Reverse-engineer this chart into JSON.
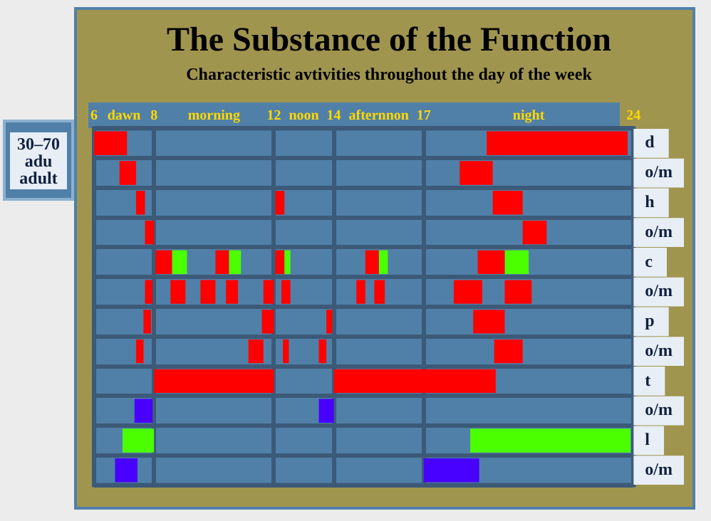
{
  "chart_data": {
    "type": "bar",
    "orientation": "horizontal",
    "title": "The Substance of the Function",
    "subtitle": "Characteristic avtivities throughout the day of the week",
    "annotations": [
      "30–70 adu adult"
    ],
    "categories": [
      "d",
      "o/m",
      "h",
      "o/m",
      "c",
      "o/m",
      "p",
      "o/m",
      "t",
      "o/m",
      "l",
      "o/m"
    ],
    "xlim": [
      6,
      24
    ],
    "xticks": [
      6,
      {
        "value": 7,
        "label": "dawn"
      },
      8,
      {
        "value": 10,
        "label": "morning"
      },
      12,
      {
        "value": 13,
        "label": "noon"
      },
      14,
      {
        "value": 15.5,
        "label": "afternnon"
      },
      17,
      {
        "value": 20.5,
        "label": "night"
      },
      24
    ],
    "grid": true,
    "legend": false,
    "series": [
      {
        "base": [
          6.0,
          6.85,
          7.4,
          7.7,
          8.05,
          7.7,
          7.65,
          7.4,
          8.0,
          7.35,
          6.95,
          6.7
        ],
        "values": [
          1.1,
          0.55,
          0.3,
          0.3,
          0.55,
          0.25,
          0.25,
          0.25,
          4.0,
          0.6,
          1.05,
          0.75
        ],
        "colors": [
          "#ff0000",
          "#ff0000",
          "#ff0000",
          "#ff0000",
          "#ff0000",
          "#ff0000",
          "#ff0000",
          "#ff0000",
          "#ff0000",
          "#4800ff",
          "#4cff00",
          "#4800ff"
        ]
      },
      {
        "base": [
          19.1,
          18.2,
          12.05,
          20.3,
          8.6,
          8.55,
          11.6,
          11.15,
          14.0,
          13.5,
          18.55,
          17.0
        ],
        "values": [
          4.7,
          1.1,
          0.3,
          0.8,
          0.5,
          0.5,
          0.4,
          0.5,
          5.4,
          0.5,
          5.35,
          1.85
        ],
        "colors": [
          "#ff0000",
          "#ff0000",
          "#ff0000",
          "#ff0000",
          "#4cff00",
          "#ff0000",
          "#ff0000",
          "#ff0000",
          "#ff0000",
          "#4800ff",
          "#4cff00",
          "#4800ff"
        ]
      },
      {
        "base": [
          null,
          null,
          19.3,
          null,
          10.05,
          9.55,
          13.75,
          12.3,
          null,
          null,
          null,
          null
        ],
        "values": [
          null,
          null,
          1.0,
          null,
          0.45,
          0.5,
          0.2,
          0.2,
          null,
          null,
          null,
          null
        ],
        "colors": [
          null,
          null,
          "#ff0000",
          null,
          "#ff0000",
          "#ff0000",
          "#ff0000",
          "#ff0000",
          null,
          null,
          null,
          null
        ]
      },
      {
        "base": [
          null,
          null,
          null,
          null,
          10.5,
          10.4,
          18.65,
          13.5,
          null,
          null,
          null,
          null
        ],
        "values": [
          null,
          null,
          null,
          null,
          0.4,
          0.4,
          1.05,
          0.25,
          null,
          null,
          null,
          null
        ],
        "colors": [
          null,
          null,
          null,
          null,
          "#4cff00",
          "#ff0000",
          "#ff0000",
          "#ff0000",
          null,
          null,
          null,
          null
        ]
      },
      {
        "base": [
          null,
          null,
          null,
          null,
          12.05,
          11.65,
          null,
          19.35,
          null,
          null,
          null,
          null
        ],
        "values": [
          null,
          null,
          null,
          null,
          0.3,
          0.35,
          null,
          0.95,
          null,
          null,
          null,
          null
        ],
        "colors": [
          null,
          null,
          null,
          null,
          "#ff0000",
          "#ff0000",
          null,
          "#ff0000",
          null,
          null,
          null,
          null
        ]
      },
      {
        "base": [
          null,
          null,
          null,
          null,
          12.35,
          12.25,
          null,
          null,
          null,
          null,
          null,
          null
        ],
        "values": [
          null,
          null,
          null,
          null,
          0.2,
          0.3,
          null,
          null,
          null,
          null,
          null,
          null
        ],
        "colors": [
          null,
          null,
          null,
          null,
          "#4cff00",
          "#ff0000",
          null,
          null,
          null,
          null,
          null,
          null
        ]
      },
      {
        "base": [
          null,
          null,
          null,
          null,
          15.05,
          14.75,
          null,
          null,
          null,
          null,
          null,
          null
        ],
        "values": [
          null,
          null,
          null,
          null,
          0.45,
          0.3,
          null,
          null,
          null,
          null,
          null,
          null
        ],
        "colors": [
          null,
          null,
          null,
          null,
          "#ff0000",
          "#ff0000",
          null,
          null,
          null,
          null,
          null,
          null
        ]
      },
      {
        "base": [
          null,
          null,
          null,
          null,
          15.5,
          15.35,
          null,
          null,
          null,
          null,
          null,
          null
        ],
        "values": [
          null,
          null,
          null,
          null,
          0.3,
          0.35,
          null,
          null,
          null,
          null,
          null,
          null
        ],
        "colors": [
          null,
          null,
          null,
          null,
          "#4cff00",
          "#ff0000",
          null,
          null,
          null,
          null,
          null,
          null
        ]
      },
      {
        "base": [
          null,
          null,
          null,
          null,
          18.8,
          18.0,
          null,
          null,
          null,
          null,
          null,
          null
        ],
        "values": [
          null,
          null,
          null,
          null,
          0.9,
          0.95,
          null,
          null,
          null,
          null,
          null,
          null
        ],
        "colors": [
          null,
          null,
          null,
          null,
          "#ff0000",
          "#ff0000",
          null,
          null,
          null,
          null,
          null,
          null
        ]
      },
      {
        "base": [
          null,
          null,
          null,
          null,
          19.7,
          19.7,
          null,
          null,
          null,
          null,
          null,
          null
        ],
        "values": [
          null,
          null,
          null,
          null,
          0.8,
          0.9,
          null,
          null,
          null,
          null,
          null,
          null
        ],
        "colors": [
          null,
          null,
          null,
          null,
          "#4cff00",
          "#ff0000",
          null,
          null,
          null,
          null,
          null,
          null
        ]
      }
    ]
  }
}
